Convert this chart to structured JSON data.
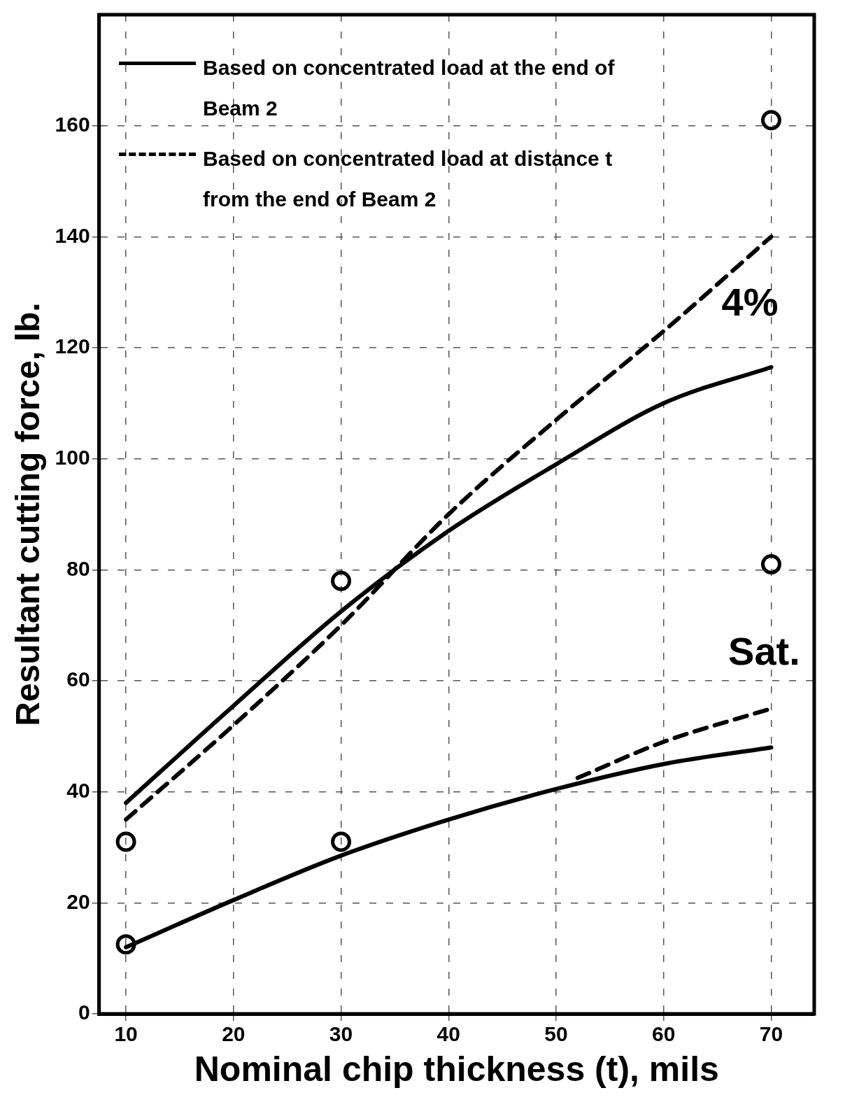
{
  "chart_data": {
    "type": "line",
    "xlabel": "Nominal chip thickness (t), mils",
    "ylabel": "Resultant cutting force, lb.",
    "xlim": [
      7.5,
      74
    ],
    "xticks": [
      10,
      20,
      30,
      40,
      50,
      60,
      70
    ],
    "ylim": [
      0,
      180
    ],
    "yticks": [
      0,
      20,
      40,
      60,
      80,
      100,
      120,
      140,
      160
    ],
    "grid": true,
    "legend": "top left",
    "series": [
      {
        "name": "Based on concentrated load at the end of Beam 2",
        "type": "line",
        "line_style": "solid",
        "marker": "none",
        "color": "#000000",
        "x": [
          10,
          20,
          30,
          40,
          50,
          60,
          70
        ],
        "values": [
          38,
          55.5,
          72.5,
          87,
          99,
          110,
          116.5
        ]
      },
      {
        "name": "Based on concentrated load at distance t from the end of Beam 2",
        "type": "line",
        "line_style": "dashed",
        "marker": "none",
        "color": "#000000",
        "x": [
          10,
          20,
          30,
          40,
          50,
          60,
          70
        ],
        "values": [
          35,
          52,
          70,
          90,
          107,
          123,
          140
        ]
      },
      {
        "type": "line",
        "line_style": "solid",
        "marker": "none",
        "color": "#000000",
        "x": [
          10,
          20,
          30,
          40,
          50,
          60,
          70
        ],
        "values": [
          12,
          20.5,
          28.5,
          35,
          40.5,
          45,
          48
        ]
      },
      {
        "type": "line",
        "line_style": "dashed",
        "marker": "none",
        "color": "#000000",
        "x": [
          52,
          60,
          70
        ],
        "values": [
          42.5,
          49,
          55
        ]
      },
      {
        "type": "scatter",
        "marker": "circle",
        "color": "#000000",
        "x": [
          10,
          30,
          70,
          10,
          30,
          70
        ],
        "values": [
          31,
          78,
          161,
          12.5,
          31,
          81
        ]
      }
    ],
    "annotations": [
      "4%",
      "Sat."
    ]
  }
}
